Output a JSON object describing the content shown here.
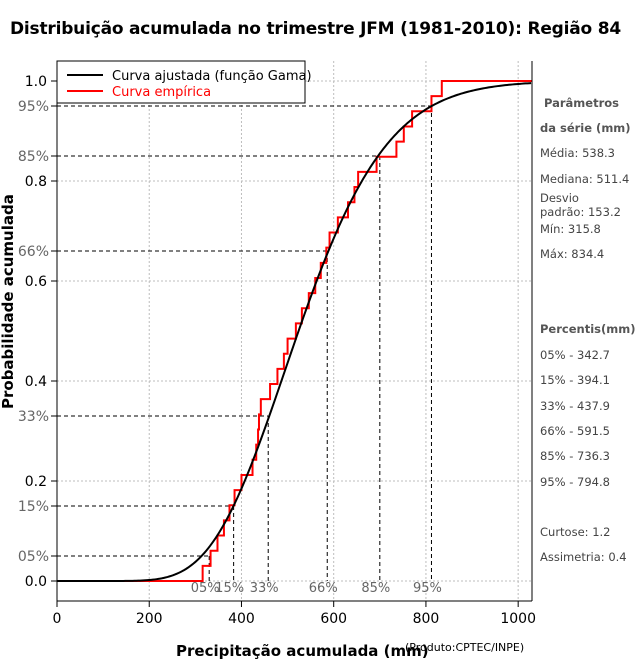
{
  "title": "Distribuição acumulada no trimestre JFM (1981-2010): Região 84",
  "credit": "(Produto:CPTEC/INPE)",
  "sidebar": {
    "params_title_1": "Parâmetros",
    "params_title_2": "da série (mm)",
    "media": "Média: 538.3",
    "mediana": "Mediana: 511.4",
    "desvio_1": "Desvio",
    "desvio_2": "padrão: 153.2",
    "min": "Mín: 315.8",
    "max": "Máx: 834.4",
    "percentis_title": "Percentis(mm)",
    "p05": "05% - 342.7",
    "p15": "15% - 394.1",
    "p33": "33% - 437.9",
    "p66": "66% - 591.5",
    "p85": "85% - 736.3",
    "p95": "95% - 794.8",
    "curtose": "Curtose: 1.2",
    "assimetria": "Assimetria: 0.4"
  },
  "chart_data": {
    "type": "line",
    "title": "Distribuição acumulada no trimestre JFM (1981-2010): Região 84",
    "xlabel": "Precipitação acumulada (mm)",
    "ylabel": "Probabilidade acumulada",
    "xlim": [
      0,
      1030
    ],
    "ylim": [
      -0.04,
      1.04
    ],
    "x_ticks": [
      0,
      200,
      400,
      600,
      800,
      1000
    ],
    "y_ticks": [
      "0.0",
      "0.2",
      "0.4",
      "0.6",
      "0.8",
      "1.0"
    ],
    "y_tick_values": [
      0,
      0.2,
      0.4,
      0.6,
      0.8,
      1.0
    ],
    "grid": true,
    "legend": {
      "placement": "top-left",
      "entries": [
        {
          "label": "Curva ajustada (função Gama)",
          "color": "#000000"
        },
        {
          "label": "Curva empírica",
          "color": "#ff0000"
        }
      ]
    },
    "gamma_fit": {
      "mean": 538.3,
      "sd": 153.2,
      "color": "#000000"
    },
    "empirical": {
      "color": "#ff0000",
      "values": [
        315.8,
        333,
        348,
        362,
        374,
        385,
        400,
        424,
        432,
        436,
        438,
        442,
        462,
        478,
        492,
        500,
        518,
        531,
        546,
        560,
        572,
        584,
        591,
        609,
        631,
        645,
        653,
        693,
        736,
        752,
        770,
        812,
        834.4
      ]
    },
    "percentiles": [
      {
        "label": "05%",
        "y": 0.05,
        "x": 330,
        "ylabel": "05%"
      },
      {
        "label": "15%",
        "y": 0.15,
        "x": 383,
        "ylabel": "15%"
      },
      {
        "label": "33%",
        "y": 0.33,
        "x": 458,
        "ylabel": "33%"
      },
      {
        "label": "66%",
        "y": 0.66,
        "x": 586,
        "ylabel": "66%"
      },
      {
        "label": "85%",
        "y": 0.85,
        "x": 700,
        "ylabel": "85%"
      },
      {
        "label": "95%",
        "y": 0.95,
        "x": 812,
        "ylabel": "95%"
      }
    ]
  }
}
